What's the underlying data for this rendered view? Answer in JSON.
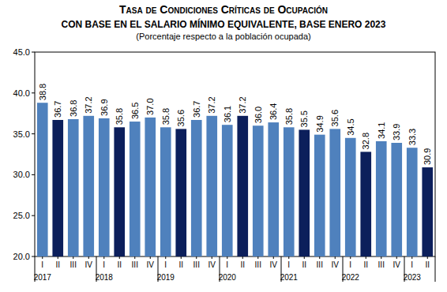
{
  "chart_data": {
    "type": "bar",
    "title": "Tasa de Condiciones Críticas de Ocupación",
    "subtitle": "CON BASE EN EL SALARIO MÍNIMO EQUIVALENTE, BASE ENERO 2023",
    "note": "(Porcentaje respecto a la población ocupada)",
    "categories": [
      "I",
      "II",
      "III",
      "IV",
      "I",
      "II",
      "III",
      "IV",
      "I",
      "II",
      "III",
      "IV",
      "I",
      "II",
      "III",
      "IV",
      "I",
      "II",
      "III",
      "IV",
      "I",
      "II",
      "III",
      "IV",
      "I",
      "II"
    ],
    "x_groups": [
      "2017",
      "2018",
      "2019",
      "2020",
      "2021",
      "2022",
      "2023"
    ],
    "values": [
      38.8,
      36.7,
      36.8,
      37.2,
      36.9,
      35.8,
      36.5,
      37.0,
      35.8,
      35.6,
      36.7,
      37.2,
      36.1,
      37.2,
      36.0,
      36.4,
      35.8,
      35.5,
      34.9,
      35.6,
      34.5,
      32.8,
      34.1,
      33.9,
      33.3,
      30.9
    ],
    "value_labels": [
      "38.8",
      "36.7",
      "36.8",
      "37.2",
      "36.9",
      "35.8",
      "36.5",
      "37.0",
      "35.8",
      "35.6",
      "36.7",
      "37.2",
      "36.1",
      "37.2",
      "36.0",
      "36.4",
      "35.8",
      "35.5",
      "34.9",
      "35.6",
      "34.5",
      "32.8",
      "34.1",
      "33.9",
      "33.3",
      "30.9"
    ],
    "colors": [
      "#4f81bd",
      "#0c1f5b",
      "#4f81bd",
      "#4f81bd",
      "#4f81bd",
      "#0c1f5b",
      "#4f81bd",
      "#4f81bd",
      "#4f81bd",
      "#0c1f5b",
      "#4f81bd",
      "#4f81bd",
      "#4f81bd",
      "#0c1f5b",
      "#4f81bd",
      "#4f81bd",
      "#4f81bd",
      "#0c1f5b",
      "#4f81bd",
      "#4f81bd",
      "#4f81bd",
      "#0c1f5b",
      "#4f81bd",
      "#4f81bd",
      "#4f81bd",
      "#0c1f5b"
    ],
    "ylim": [
      20,
      45
    ],
    "yticks": [
      {
        "value": 20,
        "label": "20.0"
      },
      {
        "value": 25,
        "label": "25.0"
      },
      {
        "value": 30,
        "label": "30.0"
      },
      {
        "value": 35,
        "label": "35.0"
      },
      {
        "value": 40,
        "label": "40.0"
      },
      {
        "value": 45,
        "label": "45.0"
      }
    ],
    "grid": false,
    "data_labels": true
  }
}
